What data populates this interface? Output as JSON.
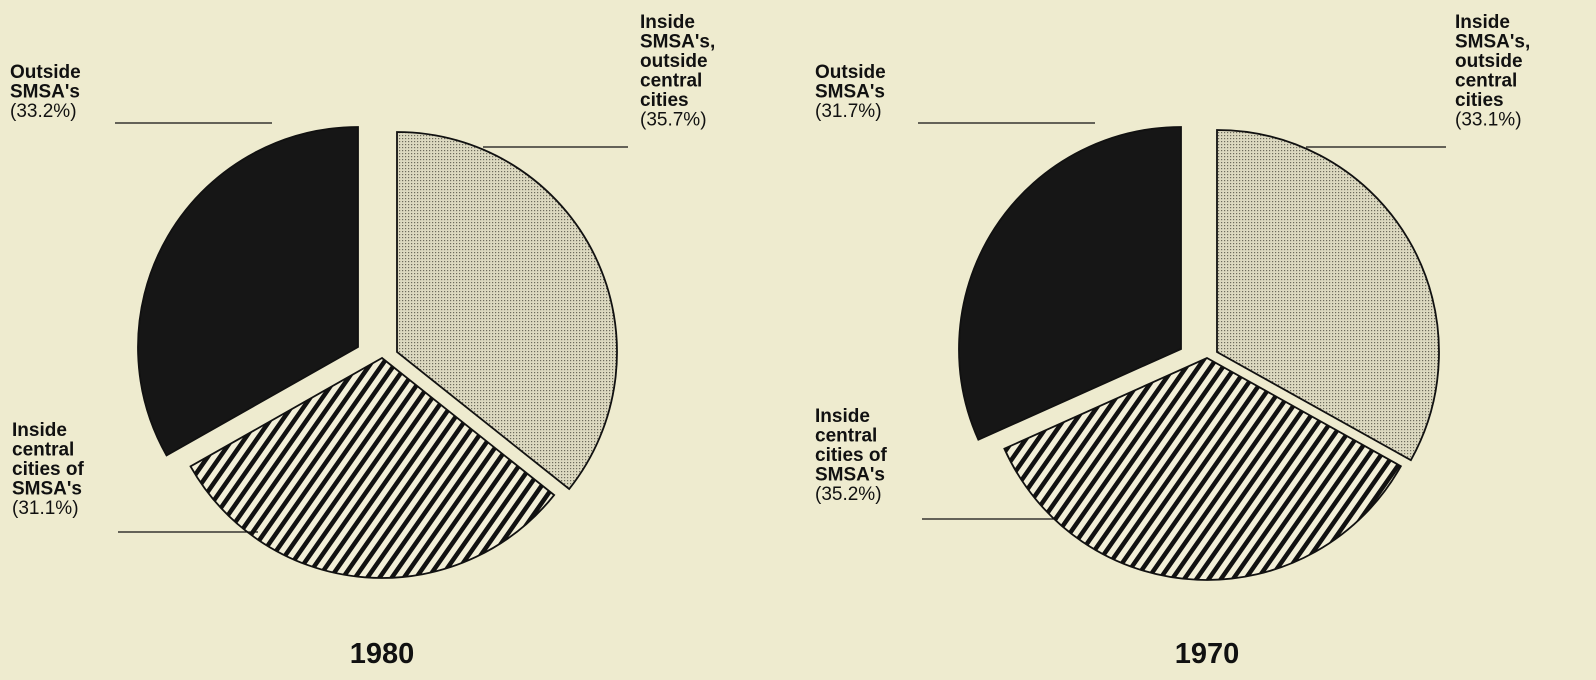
{
  "chart_data": [
    {
      "type": "pie",
      "title": "1980",
      "slices": [
        {
          "label": "Inside SMSA's, outside central cities",
          "label_lines": [
            "Inside",
            "SMSA's,",
            "outside",
            "central",
            "cities"
          ],
          "pct_text": "(35.7%)",
          "value": 35.7,
          "pattern": "dots"
        },
        {
          "label": "Inside central cities of SMSA's",
          "label_lines": [
            "Inside",
            "central",
            "cities of",
            "SMSA's"
          ],
          "pct_text": "(31.1%)",
          "value": 31.1,
          "pattern": "stripes"
        },
        {
          "label": "Outside SMSA's",
          "label_lines": [
            "Outside",
            "SMSA's"
          ],
          "pct_text": "(33.2%)",
          "value": 33.2,
          "pattern": "solid"
        }
      ]
    },
    {
      "type": "pie",
      "title": "1970",
      "slices": [
        {
          "label": "Inside SMSA's, outside central cities",
          "label_lines": [
            "Inside",
            "SMSA's,",
            "outside",
            "central",
            "cities"
          ],
          "pct_text": "(33.1%)",
          "value": 33.1,
          "pattern": "dots"
        },
        {
          "label": "Inside central cities of SMSA's",
          "label_lines": [
            "Inside",
            "central",
            "cities of",
            "SMSA's"
          ],
          "pct_text": "(35.2%)",
          "value": 35.2,
          "pattern": "stripes"
        },
        {
          "label": "Outside SMSA's",
          "label_lines": [
            "Outside",
            "SMSA's"
          ],
          "pct_text": "(31.7%)",
          "value": 31.7,
          "pattern": "solid"
        }
      ]
    }
  ],
  "colors": {
    "background": "#eeebcf",
    "solid": "#161616",
    "ink": "#111111"
  }
}
